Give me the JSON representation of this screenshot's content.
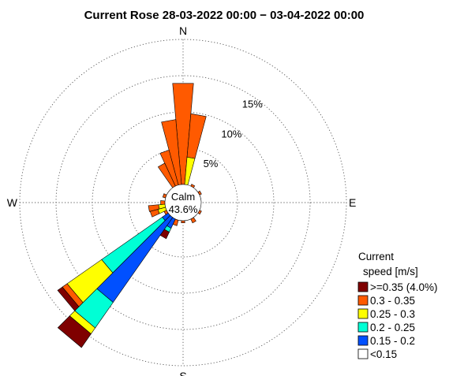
{
  "chart_data": {
    "type": "windrose",
    "title": "Current Rose 28-03-2022 00:00 − 03-04-2022 00:00",
    "directions": {
      "north": "N",
      "east": "E",
      "south": "S",
      "west": "W"
    },
    "rings": [
      {
        "value": 5,
        "label": "5%"
      },
      {
        "value": 10,
        "label": "10%"
      },
      {
        "value": 15,
        "label": "15%"
      },
      {
        "value": 20,
        "label": ""
      }
    ],
    "calm": {
      "label": "Calm",
      "value_label": "43.6%",
      "value": 43.6
    },
    "legend": {
      "title_line1": "Current",
      "title_line2": "speed [m/s]",
      "entries": [
        {
          "label": ">=0.35 (4.0%)",
          "color": "#7f0000"
        },
        {
          "label": "0.3 - 0.35",
          "color": "#ff5a00"
        },
        {
          "label": "0.25 - 0.3",
          "color": "#ffff00"
        },
        {
          "label": "0.2 - 0.25",
          "color": "#00ffd5"
        },
        {
          "label": "0.15 - 0.2",
          "color": "#0050ff"
        },
        {
          "label": "<0.15",
          "color": "#ffffff"
        }
      ]
    },
    "sector_width_deg": 10,
    "sectors": [
      {
        "dir": 0,
        "values": [
          0,
          14,
          0,
          0,
          0,
          0
        ]
      },
      {
        "dir": 10,
        "values": [
          0,
          6,
          3.8,
          0,
          0,
          0
        ]
      },
      {
        "dir": 350,
        "values": [
          0,
          9,
          0,
          0,
          0,
          0
        ]
      },
      {
        "dir": 340,
        "values": [
          0,
          5,
          0,
          0,
          0,
          0
        ]
      },
      {
        "dir": 330,
        "values": [
          0,
          3.5,
          0,
          0,
          0,
          0
        ]
      },
      {
        "dir": 30,
        "values": [
          0,
          0.3,
          0,
          0,
          0,
          0
        ]
      },
      {
        "dir": 60,
        "values": [
          0,
          0.3,
          0,
          0,
          0,
          0
        ]
      },
      {
        "dir": 120,
        "values": [
          0,
          0.3,
          0,
          0,
          0,
          0
        ]
      },
      {
        "dir": 150,
        "values": [
          0,
          0.6,
          0,
          0,
          0,
          0
        ]
      },
      {
        "dir": 180,
        "values": [
          0,
          0.3,
          0,
          0,
          0,
          0
        ]
      },
      {
        "dir": 210,
        "values": [
          1.0,
          0,
          0,
          0.6,
          1.4,
          0
        ]
      },
      {
        "dir": 220,
        "values": [
          2.3,
          0,
          1.0,
          4.3,
          14.3,
          0
        ]
      },
      {
        "dir": 230,
        "values": [
          0.8,
          0.8,
          5.8,
          10.2,
          1.0,
          0
        ]
      },
      {
        "dir": 240,
        "values": [
          0,
          0.4,
          0,
          0,
          0,
          0
        ]
      },
      {
        "dir": 250,
        "values": [
          0,
          1.1,
          1.1,
          0,
          0,
          0
        ]
      },
      {
        "dir": 260,
        "values": [
          0,
          1.4,
          0.9,
          0,
          0,
          0
        ]
      },
      {
        "dir": 270,
        "values": [
          0,
          0.6,
          0,
          0,
          0,
          0
        ]
      },
      {
        "dir": 290,
        "values": [
          0,
          0.4,
          0,
          0,
          0,
          0
        ]
      },
      {
        "dir": 200,
        "values": [
          0,
          0.8,
          0,
          0,
          0,
          0
        ]
      }
    ]
  }
}
